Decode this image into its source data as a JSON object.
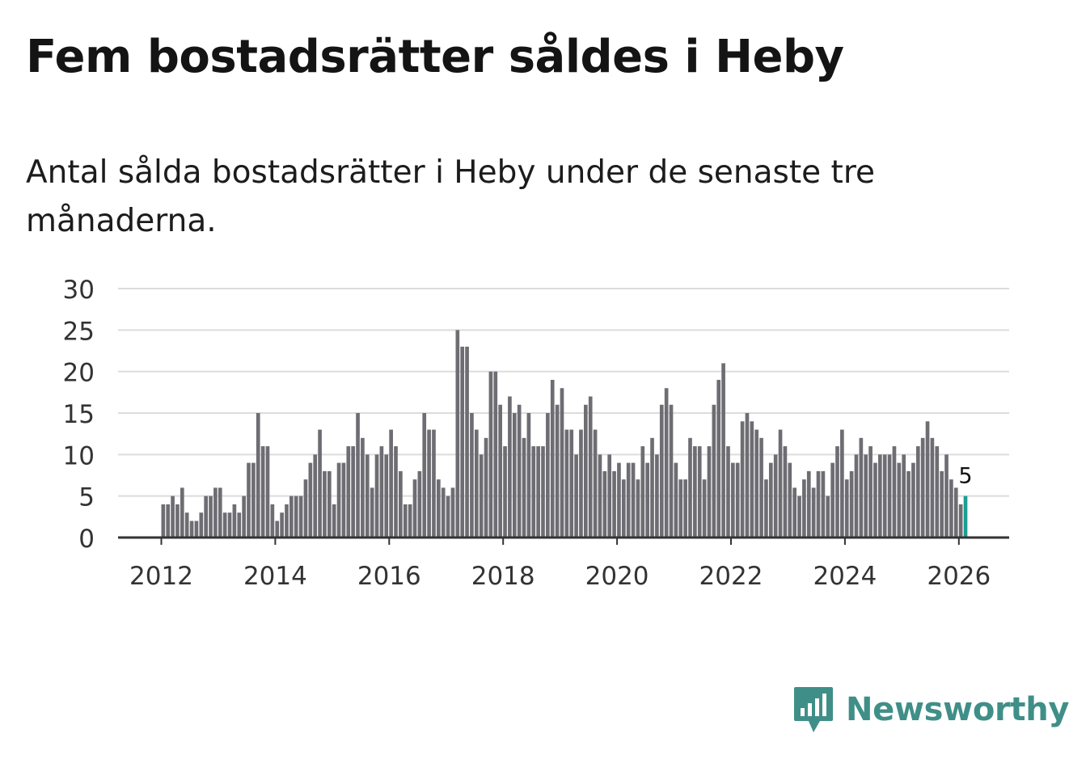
{
  "title": "Fem bostadsrätter såldes i Heby",
  "subtitle": "Antal sålda bostadsrätter i Heby under de senaste tre månaderna.",
  "brand": {
    "name": "Newsworthy",
    "color": "#3f8f88",
    "icon": "newsworthy-logo-icon"
  },
  "colors": {
    "bar": "#6e6d73",
    "highlight": "#1a9e93",
    "grid": "#dcdcdc",
    "axis": "#333333"
  },
  "chart_data": {
    "type": "bar",
    "title": "Fem bostadsrätter såldes i Heby",
    "xlabel": "",
    "ylabel": "",
    "ylim": [
      0,
      30
    ],
    "yticks": [
      0,
      5,
      10,
      15,
      20,
      25,
      30
    ],
    "xticks": [
      {
        "label": "2012",
        "year": 2012
      },
      {
        "label": "2014",
        "year": 2014
      },
      {
        "label": "2016",
        "year": 2016
      },
      {
        "label": "2018",
        "year": 2018
      },
      {
        "label": "2020",
        "year": 2020
      },
      {
        "label": "2022",
        "year": 2022
      },
      {
        "label": "2024",
        "year": 2024
      },
      {
        "label": "2026",
        "year": 2026
      }
    ],
    "start_year": 2012,
    "start_month": 1,
    "values": [
      4,
      4,
      5,
      4,
      6,
      3,
      2,
      2,
      3,
      5,
      5,
      6,
      6,
      3,
      3,
      4,
      3,
      5,
      9,
      9,
      15,
      11,
      11,
      4,
      2,
      3,
      4,
      5,
      5,
      5,
      7,
      9,
      10,
      13,
      8,
      8,
      4,
      9,
      9,
      11,
      11,
      15,
      12,
      10,
      6,
      10,
      11,
      10,
      13,
      11,
      8,
      4,
      4,
      7,
      8,
      15,
      13,
      13,
      7,
      6,
      5,
      6,
      25,
      23,
      23,
      15,
      13,
      10,
      12,
      20,
      20,
      16,
      11,
      17,
      15,
      16,
      12,
      15,
      11,
      11,
      11,
      15,
      19,
      16,
      18,
      13,
      13,
      10,
      13,
      16,
      17,
      13,
      10,
      8,
      10,
      8,
      9,
      7,
      9,
      9,
      7,
      11,
      9,
      12,
      10,
      16,
      18,
      16,
      9,
      7,
      7,
      12,
      11,
      11,
      7,
      11,
      16,
      19,
      21,
      11,
      9,
      9,
      14,
      15,
      14,
      13,
      12,
      7,
      9,
      10,
      13,
      11,
      9,
      6,
      5,
      7,
      8,
      6,
      8,
      8,
      5,
      9,
      11,
      13,
      7,
      8,
      10,
      12,
      10,
      11,
      9,
      10,
      10,
      10,
      11,
      9,
      10,
      8,
      9,
      11,
      12,
      14,
      12,
      11,
      8,
      10,
      7,
      6,
      4,
      5
    ],
    "highlight_index": 169,
    "annotations": [
      {
        "index": 169,
        "text": "5"
      }
    ]
  }
}
